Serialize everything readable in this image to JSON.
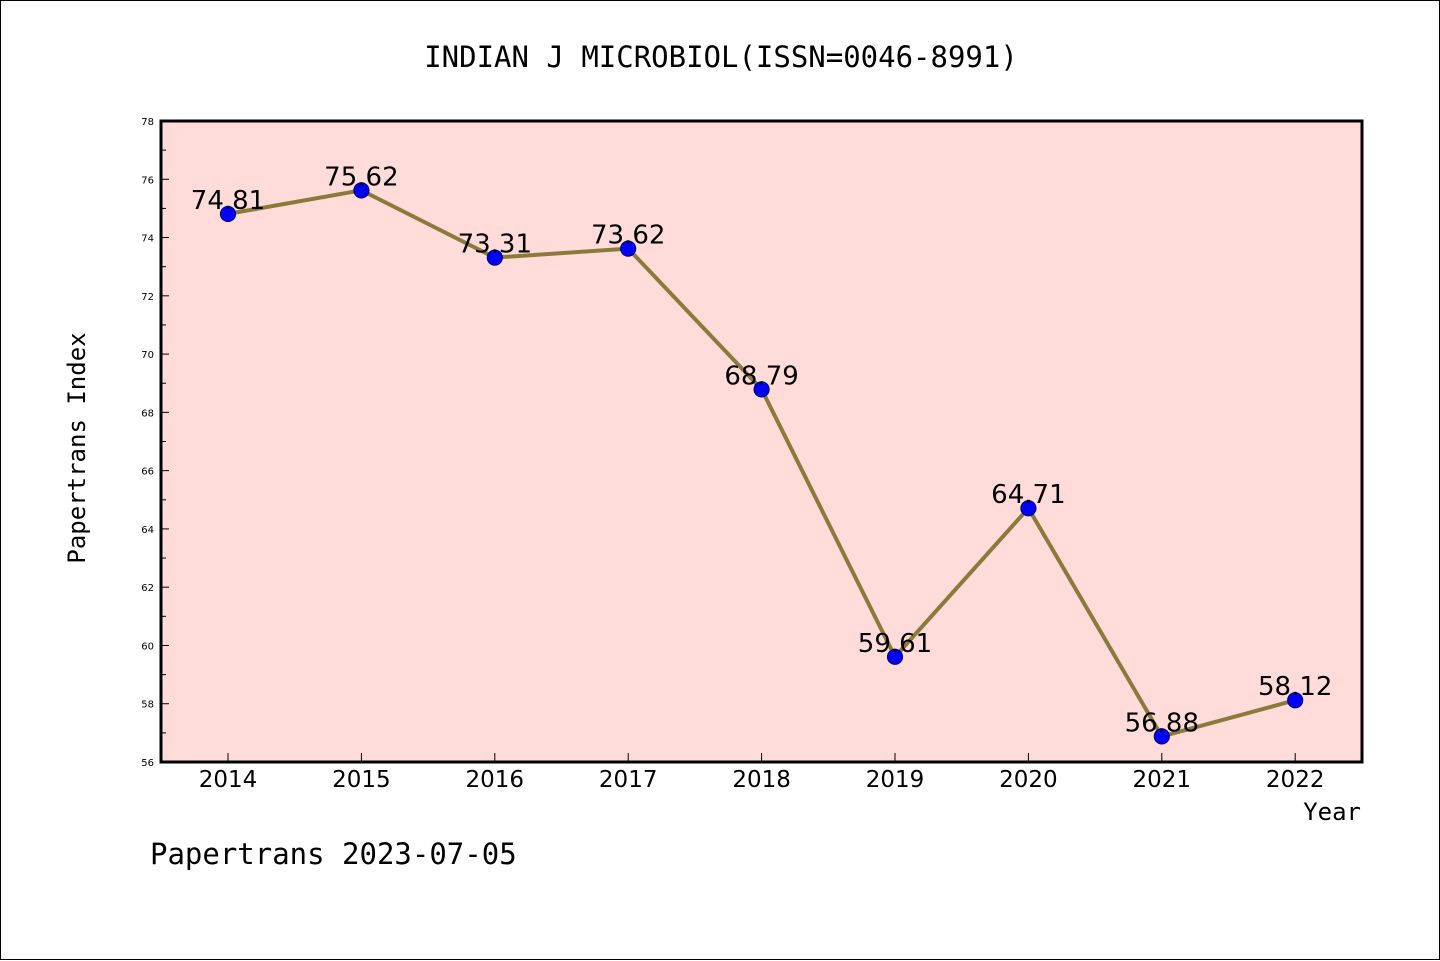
{
  "chart_data": {
    "type": "line",
    "title": "INDIAN J MICROBIOL(ISSN=0046-8991)",
    "xlabel": "Year",
    "ylabel": "Papertrans Index",
    "categories": [
      "2014",
      "2015",
      "2016",
      "2017",
      "2018",
      "2019",
      "2020",
      "2021",
      "2022"
    ],
    "values": [
      74.81,
      75.62,
      73.31,
      73.62,
      68.79,
      59.61,
      64.71,
      56.88,
      58.12
    ],
    "data_labels": [
      "74.81",
      "75.62",
      "73.31",
      "73.62",
      "68.79",
      "59.61",
      "64.71",
      "56.88",
      "58.12"
    ],
    "y_ticks": [
      "56",
      "58",
      "60",
      "62",
      "64",
      "66",
      "68",
      "70",
      "72",
      "74",
      "76",
      "78"
    ],
    "ylim": [
      56,
      78
    ],
    "grid": false,
    "legend": "none",
    "colors": {
      "plot_background": "#ffdcd9",
      "line": "#8b7a3a",
      "marker": "#0000ff",
      "marker_edge": "#000080",
      "axes": "#000000"
    }
  },
  "footer": {
    "text": "Papertrans 2023-07-05"
  }
}
